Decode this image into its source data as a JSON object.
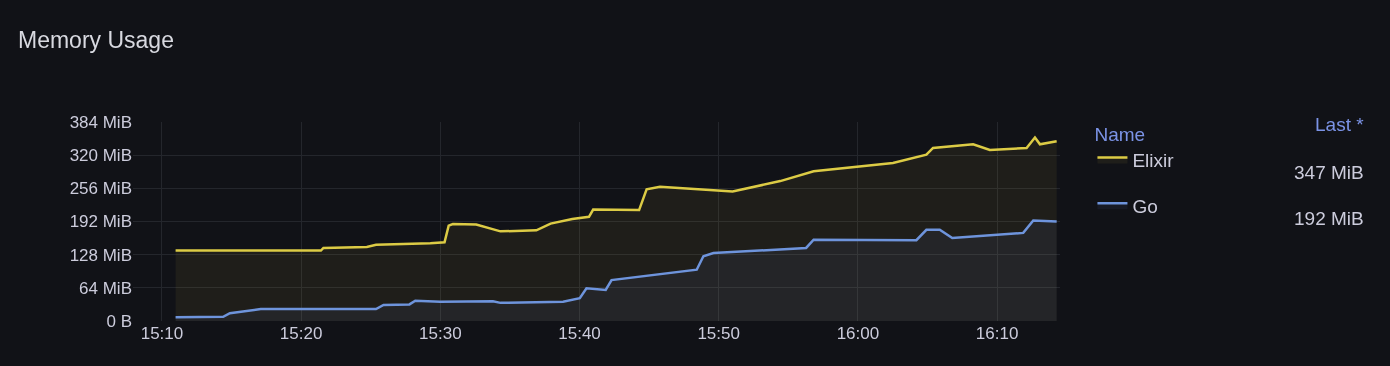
{
  "chart_data": {
    "type": "area",
    "title": "Memory Usage",
    "legend": "right",
    "legend_title": "Name",
    "grid": true,
    "annotations": [
      "Last *",
      "347 MiB",
      "192 MiB"
    ],
    "xlim": [
      15.132,
      16.242
    ],
    "xticks": [
      {
        "value": 15.1667,
        "label": "15:10"
      },
      {
        "value": 15.3333,
        "label": "15:20"
      },
      {
        "value": 15.5,
        "label": "15:30"
      },
      {
        "value": 15.6667,
        "label": "15:40"
      },
      {
        "value": 15.8333,
        "label": "15:50"
      },
      {
        "value": 16.0,
        "label": "16:00"
      },
      {
        "value": 16.1667,
        "label": "16:10"
      }
    ],
    "ylim": [
      0,
      384
    ],
    "yticks": [
      {
        "value": 0,
        "label": "0 B"
      },
      {
        "value": 64,
        "label": "64 MiB"
      },
      {
        "value": 128,
        "label": "128 MiB"
      },
      {
        "value": 192,
        "label": "192 MiB"
      },
      {
        "value": 256,
        "label": "256 MiB"
      },
      {
        "value": 320,
        "label": "320 MiB"
      },
      {
        "value": 384,
        "label": "384 MiB"
      }
    ],
    "series": [
      {
        "name": "Elixir",
        "color": "#dccb45",
        "x": [
          15.183,
          15.357,
          15.36,
          15.412,
          15.423,
          15.488,
          15.505,
          15.51,
          15.515,
          15.543,
          15.572,
          15.615,
          15.632,
          15.658,
          15.678,
          15.683,
          15.738,
          15.747,
          15.763,
          15.85,
          15.907,
          15.947,
          16.042,
          16.082,
          16.09,
          16.138,
          16.158,
          16.202,
          16.212,
          16.218,
          16.238
        ],
        "values": [
          136,
          136,
          141,
          143,
          147,
          150,
          152,
          184,
          187,
          186,
          173,
          175,
          188,
          197,
          201,
          215,
          214,
          254,
          259,
          250,
          270,
          289,
          305,
          321,
          334,
          341,
          330,
          334,
          354,
          341,
          347
        ]
      },
      {
        "name": "Go",
        "color": "#6e94dc",
        "x": [
          15.183,
          15.24,
          15.248,
          15.285,
          15.333,
          15.423,
          15.432,
          15.463,
          15.47,
          15.5,
          15.563,
          15.572,
          15.647,
          15.667,
          15.675,
          15.698,
          15.705,
          15.807,
          15.815,
          15.827,
          15.938,
          15.947,
          16.07,
          16.082,
          16.098,
          16.113,
          16.198,
          16.21,
          16.238
        ],
        "values": [
          7,
          8,
          15,
          23,
          23,
          23,
          31,
          32,
          39,
          37,
          38,
          35,
          37,
          44,
          63,
          60,
          79,
          99,
          125,
          131,
          141,
          157,
          156,
          176,
          176,
          160,
          170,
          194,
          192
        ]
      }
    ]
  }
}
